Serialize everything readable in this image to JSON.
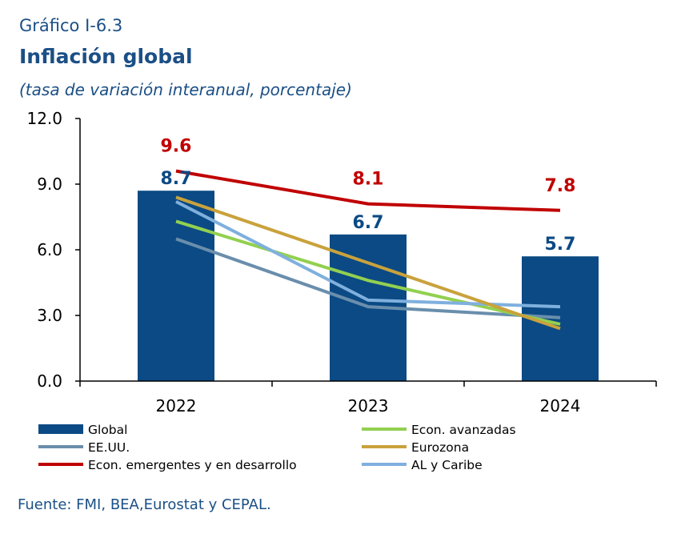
{
  "header": {
    "chart_number": "Gráfico I-6.3",
    "title": "Inflación global",
    "subtitle": "(tasa de variación interanual, porcentaje)"
  },
  "source": "Fuente: FMI, BEA,Eurostat y CEPAL.",
  "colors": {
    "global": "#0b4a84",
    "eeuu": "#6a8eac",
    "emergentes": "#c00000",
    "avanzadas": "#92d050",
    "eurozona": "#c9a23c",
    "al_caribe": "#7fb0de",
    "text_blue": "#1b4f86"
  },
  "chart_data": {
    "type": "bar",
    "categories": [
      "2022",
      "2023",
      "2024"
    ],
    "ylim": [
      0,
      12
    ],
    "yticks": [
      "0.0",
      "3.0",
      "6.0",
      "9.0",
      "12.0"
    ],
    "ytick_values": [
      0,
      3,
      6,
      9,
      12
    ],
    "grid": false,
    "legend_position": "bottom",
    "bar_series": {
      "name": "Global",
      "values": [
        8.7,
        6.7,
        5.7
      ],
      "labels": [
        "8.7",
        "6.7",
        "5.7"
      ]
    },
    "line_series": [
      {
        "key": "eeuu",
        "name": "EE.UU.",
        "values": [
          6.5,
          3.4,
          2.9
        ]
      },
      {
        "key": "avanzadas",
        "name": "Econ. avanzadas",
        "values": [
          7.3,
          4.6,
          2.6
        ]
      },
      {
        "key": "al_caribe",
        "name": "AL y Caribe",
        "values": [
          8.2,
          3.7,
          3.4
        ]
      },
      {
        "key": "eurozona",
        "name": "Eurozona",
        "values": [
          8.4,
          5.4,
          2.4
        ]
      },
      {
        "key": "emergentes",
        "name": "Econ. emergentes y en desarrollo",
        "values": [
          9.6,
          8.1,
          7.8
        ],
        "labels": [
          "9.6",
          "8.1",
          "7.8"
        ]
      }
    ],
    "legend": [
      {
        "key": "global",
        "label": "Global",
        "kind": "bar"
      },
      {
        "key": "avanzadas",
        "label": "Econ. avanzadas",
        "kind": "line"
      },
      {
        "key": "eeuu",
        "label": "EE.UU.",
        "kind": "line"
      },
      {
        "key": "eurozona",
        "label": "Eurozona",
        "kind": "line"
      },
      {
        "key": "emergentes",
        "label": "Econ. emergentes y en desarrollo",
        "kind": "line"
      },
      {
        "key": "al_caribe",
        "label": "AL y Caribe",
        "kind": "line"
      }
    ]
  }
}
